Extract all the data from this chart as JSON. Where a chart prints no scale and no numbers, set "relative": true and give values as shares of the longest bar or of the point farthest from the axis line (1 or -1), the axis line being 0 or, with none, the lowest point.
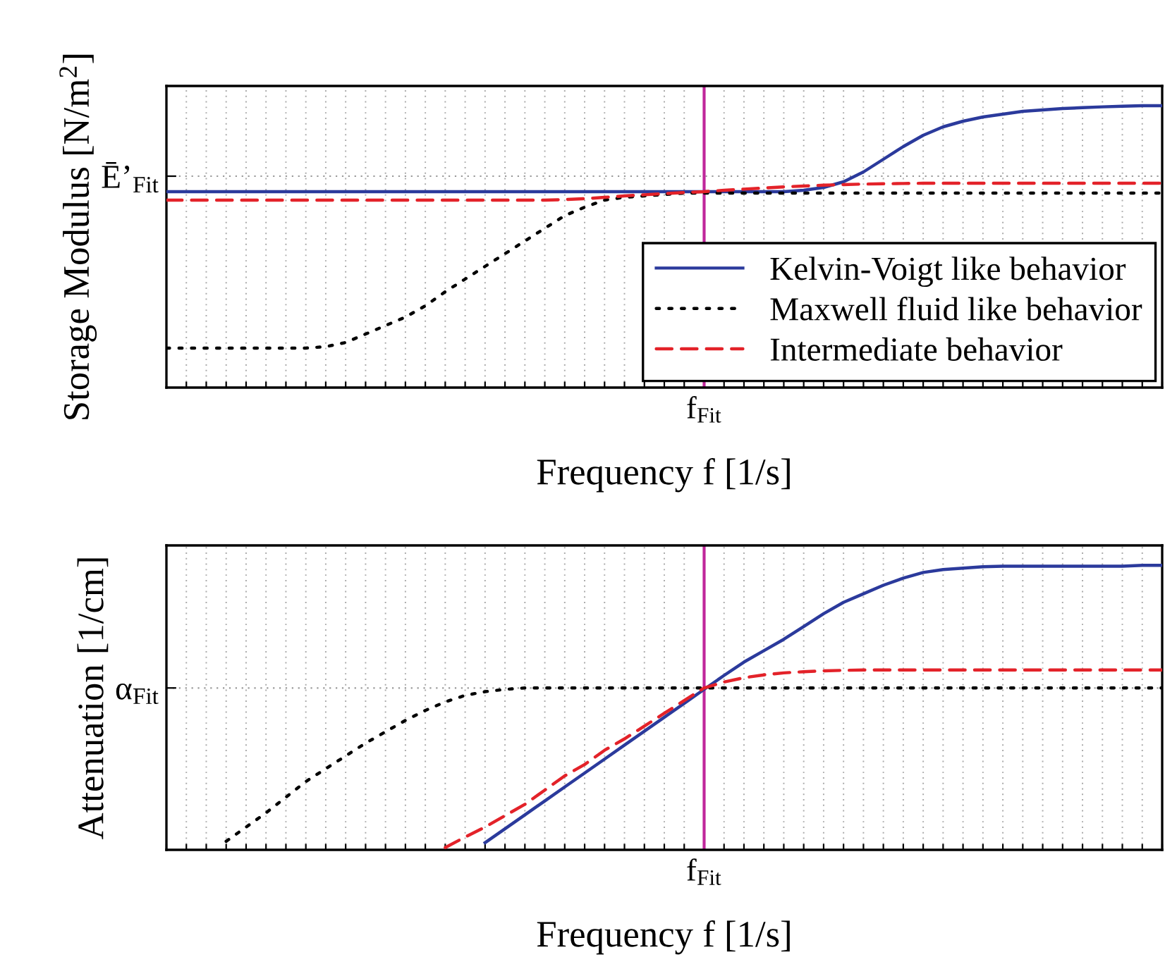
{
  "chart_data": [
    {
      "type": "line",
      "relative": true,
      "ylabel": "Storage Modulus [N/m$^{2}$]",
      "xlabel": "Frequency f [1/s]",
      "categories": [
        null,
        null,
        null,
        null,
        null,
        null,
        null,
        null,
        null,
        null,
        null,
        null,
        null,
        null,
        null,
        null,
        null,
        null,
        null,
        null,
        null,
        null,
        null,
        null,
        null,
        null,
        null,
        null,
        null,
        null,
        null,
        null,
        null,
        null,
        null,
        null,
        null,
        null,
        null,
        null,
        null,
        null,
        null,
        null,
        null,
        null,
        null,
        null,
        null,
        null,
        null
      ],
      "annotations": [
        "f$_{Fit}$"
      ],
      "series": [
        {
          "name": "Kelvin-Voigt like behavior",
          "color": "#2b3a9c",
          "line_style": "solid",
          "values": [
            0.695,
            0.695,
            0.695,
            0.695,
            0.695,
            0.695,
            0.695,
            0.695,
            0.695,
            0.695,
            0.695,
            0.695,
            0.695,
            0.695,
            0.695,
            0.695,
            0.695,
            0.695,
            0.695,
            0.695,
            0.695,
            0.695,
            0.695,
            0.695,
            0.695,
            0.695,
            0.695,
            0.695,
            0.695,
            0.695,
            0.695,
            0.695,
            0.7,
            0.71,
            0.73,
            0.765,
            0.81,
            0.855,
            0.895,
            0.925,
            0.945,
            0.96,
            0.97,
            0.98,
            0.985,
            0.99,
            0.993,
            0.996,
            0.998,
            1,
            1
          ]
        },
        {
          "name": "Maxwell fluid like behavior",
          "color": "#000000",
          "line_style": "dotted",
          "values": [
            0.14,
            0.14,
            0.14,
            0.14,
            0.14,
            0.14,
            0.14,
            0.14,
            0.145,
            0.16,
            0.19,
            0.22,
            0.25,
            0.29,
            0.34,
            0.385,
            0.43,
            0.475,
            0.52,
            0.565,
            0.61,
            0.64,
            0.665,
            0.675,
            0.68,
            0.685,
            0.69,
            0.69,
            0.69,
            0.69,
            0.69,
            0.69,
            0.69,
            0.69,
            0.69,
            0.69,
            0.69,
            0.69,
            0.69,
            0.69,
            0.69,
            0.69,
            0.69,
            0.69,
            0.69,
            0.69,
            0.69,
            0.69,
            0.69,
            0.69,
            0.69
          ]
        },
        {
          "name": "Intermediate behavior",
          "color": "#e32229",
          "line_style": "dashed",
          "values": [
            0.665,
            0.665,
            0.665,
            0.665,
            0.665,
            0.665,
            0.665,
            0.665,
            0.665,
            0.665,
            0.665,
            0.665,
            0.665,
            0.665,
            0.665,
            0.665,
            0.665,
            0.665,
            0.665,
            0.665,
            0.667,
            0.67,
            0.675,
            0.68,
            0.684,
            0.688,
            0.692,
            0.695,
            0.7,
            0.704,
            0.708,
            0.712,
            0.715,
            0.718,
            0.72,
            0.722,
            0.723,
            0.724,
            0.725,
            0.725,
            0.725,
            0.725,
            0.725,
            0.725,
            0.725,
            0.725,
            0.725,
            0.725,
            0.725,
            0.725,
            0.725
          ]
        }
      ],
      "ref_lines": [
        {
          "axis": "y",
          "value": 0.75,
          "label": "Ē’$_{Fit}$",
          "color": "#999999",
          "line_style": "dotted"
        }
      ],
      "grid": "x",
      "legend": "bottom right"
    },
    {
      "type": "line",
      "relative": true,
      "ylabel": "Attenuation [1/cm]",
      "xlabel": "Frequency f [1/s]",
      "categories": [
        null,
        null,
        null,
        null,
        null,
        null,
        null,
        null,
        null,
        null,
        null,
        null,
        null,
        null,
        null,
        null,
        null,
        null,
        null,
        null,
        null,
        null,
        null,
        null,
        null,
        null,
        null,
        null,
        null,
        null,
        null,
        null,
        null,
        null,
        null,
        null,
        null,
        null,
        null,
        null,
        null,
        null,
        null,
        null,
        null,
        null,
        null,
        null,
        null,
        null,
        null
      ],
      "annotations": [
        "f$_{Fit}$"
      ],
      "series": [
        {
          "color": "#2b3a9c",
          "line_style": "solid",
          "values": [
            null,
            null,
            null,
            null,
            null,
            null,
            null,
            null,
            null,
            null,
            null,
            null,
            null,
            null,
            null,
            null,
            0.025,
            0.074,
            0.123,
            0.172,
            0.221,
            0.27,
            0.319,
            0.368,
            0.417,
            0.466,
            0.515,
            0.564,
            0.613,
            0.66,
            0.7,
            0.74,
            0.785,
            0.83,
            0.87,
            0.9,
            0.93,
            0.955,
            0.975,
            0.985,
            0.99,
            0.995,
            0.997,
            0.997,
            0.997,
            0.997,
            0.997,
            0.997,
            0.997,
            1,
            1
          ]
        },
        {
          "color": "#000000",
          "line_style": "dotted",
          "values": [
            null,
            null,
            null,
            0.03,
            0.08,
            0.13,
            0.185,
            0.24,
            0.285,
            0.33,
            0.375,
            0.415,
            0.455,
            0.49,
            0.52,
            0.543,
            0.556,
            0.564,
            0.569,
            0.569,
            0.569,
            0.569,
            0.569,
            0.569,
            0.569,
            0.569,
            0.569,
            0.569,
            0.569,
            0.569,
            0.569,
            0.569,
            0.569,
            0.569,
            0.569,
            0.569,
            0.569,
            0.569,
            0.569,
            0.569,
            0.569,
            0.569,
            0.569,
            0.569,
            0.569,
            0.569,
            0.569,
            0.569,
            0.569,
            0.569,
            0.569
          ]
        },
        {
          "color": "#e32229",
          "line_style": "dashed",
          "values": [
            null,
            null,
            null,
            null,
            null,
            null,
            null,
            null,
            null,
            null,
            null,
            null,
            null,
            null,
            0.008,
            0.045,
            0.08,
            0.12,
            0.16,
            0.21,
            0.26,
            0.3,
            0.35,
            0.39,
            0.435,
            0.48,
            0.525,
            0.569,
            0.59,
            0.605,
            0.615,
            0.622,
            0.626,
            0.629,
            0.631,
            0.632,
            0.632,
            0.632,
            0.632,
            0.632,
            0.632,
            0.632,
            0.632,
            0.632,
            0.632,
            0.632,
            0.632,
            0.632,
            0.632,
            0.632,
            0.632
          ]
        }
      ],
      "ref_lines": [
        {
          "axis": "y",
          "value": 0.569,
          "label": "α$_{Fit}$",
          "color": "#999999",
          "line_style": "dotted"
        }
      ],
      "grid": "x"
    }
  ]
}
